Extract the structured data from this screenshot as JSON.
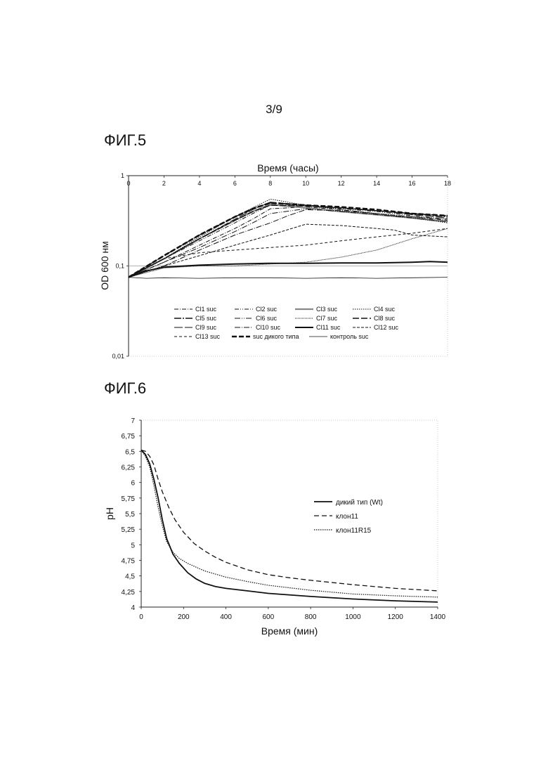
{
  "page_number": "3/9",
  "fig5": {
    "title": "ФИГ.5"
  },
  "fig6": {
    "title": "ФИГ.6"
  },
  "chart_data": [
    {
      "type": "line",
      "xlabel": "Время (часы)",
      "ylabel": "OD 600 нм",
      "xlim": [
        0,
        18
      ],
      "ylim": [
        0.01,
        1
      ],
      "y_scale": "log",
      "x_axis_position": "top",
      "x_ticks": [
        "0",
        "2",
        "4",
        "6",
        "8",
        "10",
        "12",
        "14",
        "16",
        "18"
      ],
      "y_ticks": [
        {
          "value": 1,
          "label": "1"
        },
        {
          "value": 0.1,
          "label": "0,1"
        },
        {
          "value": 0.01,
          "label": "0,01"
        }
      ],
      "reference_line": 0.1,
      "legend_position": "bottom-inside",
      "series": [
        {
          "name": "Cl1 suc",
          "dash": "6,2,1,2",
          "width": 1,
          "x": [
            0,
            2,
            4,
            6,
            7,
            8,
            10,
            12,
            14,
            16,
            18
          ],
          "y": [
            0.075,
            0.11,
            0.17,
            0.26,
            0.33,
            0.43,
            0.45,
            0.42,
            0.38,
            0.35,
            0.32
          ]
        },
        {
          "name": "Cl2 suc",
          "dash": "6,2,1,2,1,2",
          "width": 1,
          "x": [
            0,
            2,
            4,
            6,
            7,
            8,
            10,
            12,
            14,
            16,
            18
          ],
          "y": [
            0.075,
            0.12,
            0.19,
            0.3,
            0.38,
            0.47,
            0.46,
            0.43,
            0.4,
            0.36,
            0.33
          ]
        },
        {
          "name": "Cl3 suc",
          "dash": "",
          "width": 2.2,
          "color": "#888888",
          "x": [
            0,
            2,
            4,
            6,
            7,
            8,
            10,
            12,
            14,
            16,
            18
          ],
          "y": [
            0.075,
            0.12,
            0.2,
            0.32,
            0.4,
            0.48,
            0.44,
            0.4,
            0.37,
            0.34,
            0.31
          ]
        },
        {
          "name": "Cl4 suc",
          "dash": "1.5,1.5",
          "width": 1,
          "x": [
            0,
            2,
            4,
            6,
            7,
            8,
            10,
            12,
            14,
            16,
            18
          ],
          "y": [
            0.075,
            0.12,
            0.21,
            0.35,
            0.44,
            0.55,
            0.47,
            0.42,
            0.38,
            0.34,
            0.3
          ]
        },
        {
          "name": "Cl5 suc",
          "dash": "10,2,2,2",
          "width": 1.4,
          "x": [
            0,
            2,
            4,
            6,
            7,
            8,
            10,
            12,
            14,
            16,
            18
          ],
          "y": [
            0.075,
            0.13,
            0.22,
            0.35,
            0.43,
            0.5,
            0.47,
            0.44,
            0.41,
            0.38,
            0.35
          ]
        },
        {
          "name": "Cl6 suc",
          "dash": "8,2,1,2,1,2",
          "width": 1,
          "x": [
            0,
            2,
            4,
            6,
            7,
            8,
            10,
            12,
            14,
            16,
            18
          ],
          "y": [
            0.075,
            0.11,
            0.16,
            0.24,
            0.3,
            0.38,
            0.43,
            0.4,
            0.37,
            0.34,
            0.31
          ]
        },
        {
          "name": "Cl7 suc",
          "dash": "1,1",
          "width": 1,
          "x": [
            0,
            2,
            4,
            6,
            8,
            10,
            12,
            14,
            16,
            18
          ],
          "y": [
            0.075,
            0.095,
            0.1,
            0.1,
            0.105,
            0.11,
            0.125,
            0.15,
            0.2,
            0.26
          ]
        },
        {
          "name": "Cl8 suc",
          "dash": "9,3",
          "width": 1.4,
          "x": [
            0,
            2,
            4,
            6,
            7,
            8,
            10,
            12,
            14,
            16,
            18
          ],
          "y": [
            0.075,
            0.12,
            0.2,
            0.32,
            0.4,
            0.47,
            0.46,
            0.44,
            0.41,
            0.38,
            0.36
          ]
        },
        {
          "name": "Cl9 suc",
          "dash": "12,3",
          "width": 1,
          "x": [
            0,
            2,
            4,
            6,
            7,
            8,
            10,
            12,
            14,
            16,
            18
          ],
          "y": [
            0.075,
            0.12,
            0.2,
            0.33,
            0.42,
            0.51,
            0.47,
            0.44,
            0.41,
            0.37,
            0.34
          ]
        },
        {
          "name": "Cl10 suc",
          "dash": "8,2,1,2",
          "width": 1,
          "x": [
            0,
            2,
            4,
            6,
            8,
            9,
            10,
            12,
            14,
            16,
            18
          ],
          "y": [
            0.075,
            0.1,
            0.15,
            0.22,
            0.3,
            0.36,
            0.42,
            0.41,
            0.38,
            0.35,
            0.33
          ]
        },
        {
          "name": "Cl11 suc",
          "dash": "",
          "width": 2,
          "x": [
            0,
            1,
            2,
            4,
            6,
            8,
            10,
            12,
            14,
            16,
            17,
            18
          ],
          "y": [
            0.075,
            0.088,
            0.097,
            0.102,
            0.105,
            0.107,
            0.107,
            0.108,
            0.108,
            0.11,
            0.112,
            0.11
          ]
        },
        {
          "name": "Cl12 suc",
          "dash": "4,2",
          "width": 1,
          "x": [
            0,
            2,
            4,
            6,
            8,
            10,
            12,
            14,
            15,
            16,
            18
          ],
          "y": [
            0.075,
            0.1,
            0.13,
            0.17,
            0.22,
            0.29,
            0.28,
            0.26,
            0.25,
            0.22,
            0.21
          ]
        },
        {
          "name": "Cl13 suc",
          "dash": "4,3",
          "width": 1,
          "x": [
            0,
            2,
            4,
            6,
            8,
            10,
            12,
            14,
            16,
            18
          ],
          "y": [
            0.075,
            0.12,
            0.14,
            0.15,
            0.16,
            0.17,
            0.19,
            0.21,
            0.23,
            0.26
          ]
        },
        {
          "name": "suc дикого типа",
          "dash": "7,3",
          "width": 2.6,
          "x": [
            0,
            2,
            4,
            6,
            7,
            8,
            10,
            12,
            14,
            16,
            18
          ],
          "y": [
            0.075,
            0.13,
            0.22,
            0.35,
            0.43,
            0.5,
            0.47,
            0.45,
            0.42,
            0.38,
            0.36
          ]
        },
        {
          "name": "контроль suc",
          "dash": "",
          "width": 0.8,
          "x": [
            0,
            1,
            2,
            4,
            6,
            8,
            10,
            12,
            14,
            16,
            18
          ],
          "y": [
            0.075,
            0.073,
            0.074,
            0.073,
            0.074,
            0.074,
            0.073,
            0.074,
            0.073,
            0.074,
            0.075
          ]
        }
      ]
    },
    {
      "type": "line",
      "xlabel": "Время (мин)",
      "ylabel": "pH",
      "xlim": [
        0,
        1400
      ],
      "ylim": [
        4,
        7
      ],
      "x_ticks": [
        "0",
        "200",
        "400",
        "600",
        "800",
        "1000",
        "1200",
        "1400"
      ],
      "y_ticks": [
        "4",
        "4,25",
        "4,5",
        "4,75",
        "5",
        "5,25",
        "5,5",
        "5,75",
        "6",
        "6,25",
        "6,5",
        "6,75",
        "7"
      ],
      "legend_position": "right",
      "series": [
        {
          "name": "дикий тип (Wt)",
          "dash": "",
          "width": 1.8,
          "x": [
            0,
            20,
            40,
            60,
            80,
            100,
            120,
            150,
            180,
            220,
            260,
            300,
            350,
            400,
            500,
            600,
            800,
            1000,
            1200,
            1400
          ],
          "y": [
            6.52,
            6.45,
            6.3,
            6.05,
            5.75,
            5.4,
            5.1,
            4.85,
            4.7,
            4.55,
            4.45,
            4.38,
            4.33,
            4.3,
            4.26,
            4.22,
            4.17,
            4.13,
            4.1,
            4.08
          ]
        },
        {
          "name": "клон11",
          "dash": "7,4",
          "width": 1.3,
          "x": [
            0,
            20,
            40,
            60,
            80,
            100,
            130,
            160,
            200,
            250,
            300,
            350,
            400,
            500,
            600,
            700,
            800,
            1000,
            1200,
            1400
          ],
          "y": [
            6.52,
            6.5,
            6.42,
            6.28,
            6.05,
            5.85,
            5.6,
            5.4,
            5.2,
            5.02,
            4.9,
            4.8,
            4.72,
            4.6,
            4.52,
            4.47,
            4.43,
            4.36,
            4.3,
            4.26
          ]
        },
        {
          "name": "клон11R15",
          "dash": "1.5,1.5",
          "width": 1.2,
          "x": [
            0,
            20,
            40,
            60,
            80,
            100,
            120,
            150,
            180,
            220,
            260,
            300,
            400,
            500,
            600,
            800,
            1000,
            1200,
            1400
          ],
          "y": [
            6.52,
            6.42,
            6.25,
            5.95,
            5.6,
            5.3,
            5.05,
            4.88,
            4.78,
            4.7,
            4.64,
            4.58,
            4.48,
            4.41,
            4.35,
            4.27,
            4.21,
            4.18,
            4.16
          ]
        }
      ]
    }
  ]
}
